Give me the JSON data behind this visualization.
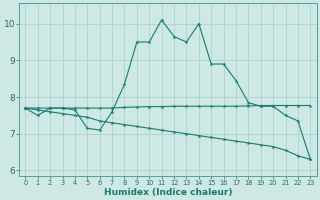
{
  "xlabel": "Humidex (Indice chaleur)",
  "bg_color": "#cde8e5",
  "line_color": "#1a7a6e",
  "grid_color": "#a8ceca",
  "xlim": [
    -0.5,
    23.5
  ],
  "ylim": [
    5.85,
    10.55
  ],
  "yticks": [
    6,
    7,
    8,
    9,
    10
  ],
  "xticks": [
    0,
    1,
    2,
    3,
    4,
    5,
    6,
    7,
    8,
    9,
    10,
    11,
    12,
    13,
    14,
    15,
    16,
    17,
    18,
    19,
    20,
    21,
    22,
    23
  ],
  "line1_y": [
    7.7,
    7.5,
    7.7,
    7.7,
    7.65,
    7.15,
    7.1,
    7.6,
    8.35,
    9.5,
    9.5,
    10.1,
    9.65,
    9.5,
    10.0,
    8.9,
    8.9,
    8.45,
    7.85,
    7.75,
    7.75,
    7.5,
    7.35,
    6.3
  ],
  "line2_y": [
    7.7,
    7.7,
    7.7,
    7.7,
    7.7,
    7.7,
    7.7,
    7.7,
    7.72,
    7.73,
    7.74,
    7.74,
    7.75,
    7.75,
    7.75,
    7.75,
    7.75,
    7.75,
    7.76,
    7.77,
    7.77,
    7.77,
    7.77,
    7.77
  ],
  "line3_y": [
    7.7,
    7.65,
    7.6,
    7.55,
    7.5,
    7.45,
    7.35,
    7.3,
    7.25,
    7.2,
    7.15,
    7.1,
    7.05,
    7.0,
    6.95,
    6.9,
    6.85,
    6.8,
    6.75,
    6.7,
    6.65,
    6.55,
    6.4,
    6.3
  ]
}
